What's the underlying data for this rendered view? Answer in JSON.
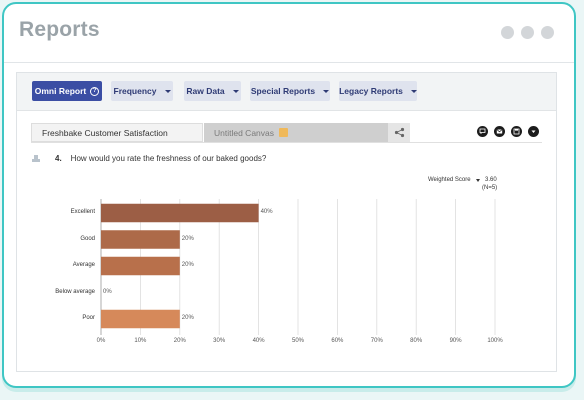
{
  "window": {
    "title": "Reports"
  },
  "toolbar": {
    "omni_report": "Omni Report",
    "frequency": "Frequency",
    "raw_data": "Raw Data",
    "special_reports": "Special Reports",
    "legacy_reports": "Legacy Reports"
  },
  "tabs": {
    "active": "Freshbake Customer Satisfaction",
    "inactive": "Untitled Canvas"
  },
  "question": {
    "number": "4.",
    "text": "How would you rate the freshness of our baked goods?"
  },
  "score": {
    "label": "Weighted Score",
    "value": "3.60",
    "n": "(N=5)"
  },
  "colors": {
    "accent": "#3b4ea4",
    "bar_excellent": "#9c5e45",
    "bar_good": "#ad6a49",
    "bar_average": "#b8704b",
    "bar_below_average": "#c47c52",
    "bar_poor": "#d6895a"
  },
  "icons": [
    "help-icon",
    "share-nodes-icon",
    "comment-icon",
    "email-icon",
    "save-icon",
    "download-icon",
    "chart-type-icon",
    "dropdown-caret-icon"
  ],
  "chart_data": {
    "type": "bar",
    "orientation": "horizontal",
    "categories": [
      "Excellent",
      "Good",
      "Average",
      "Below average",
      "Poor"
    ],
    "values": [
      40,
      20,
      20,
      0,
      20
    ],
    "value_labels": [
      "40%",
      "20%",
      "20%",
      "0%",
      "20%"
    ],
    "xlim": [
      0,
      100
    ],
    "ticks": [
      "0%",
      "10%",
      "20%",
      "30%",
      "40%",
      "50%",
      "60%",
      "70%",
      "80%",
      "90%",
      "100%"
    ],
    "grid": true,
    "xlabel": "",
    "ylabel": ""
  }
}
